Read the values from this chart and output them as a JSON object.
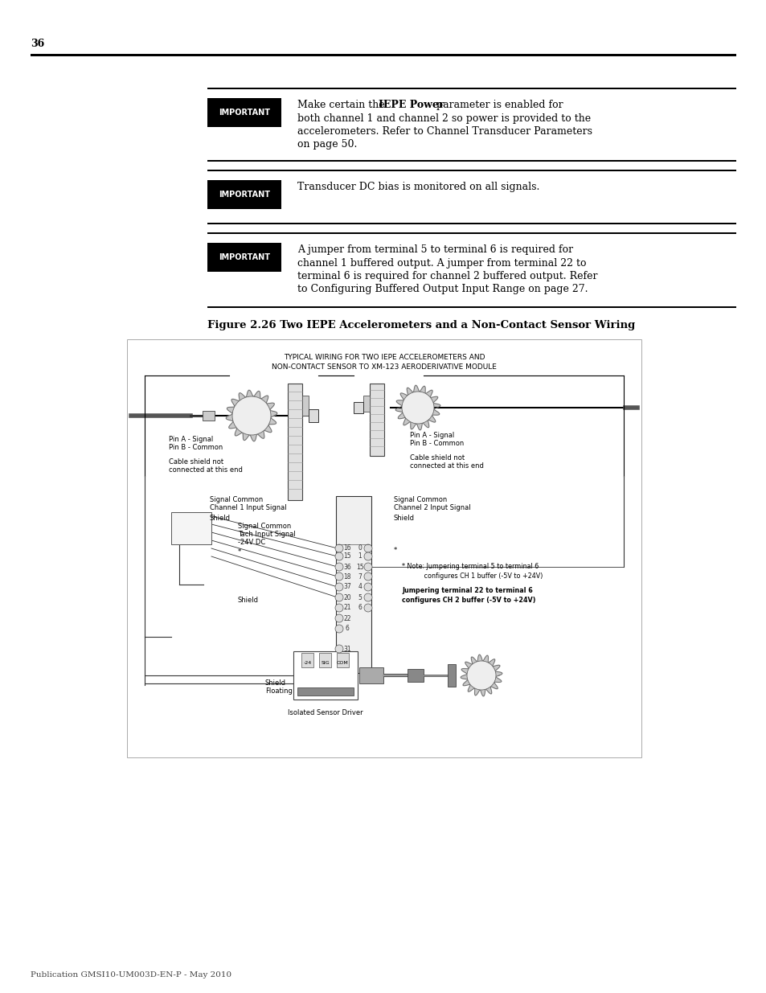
{
  "page_number": "36",
  "bg": "#ffffff",
  "black": "#000000",
  "gray": "#888888",
  "lgray": "#cccccc",
  "dgray": "#555555",
  "footer": "Publication GMSI10-UM003D-EN-P - May 2010",
  "imp1_text": "Make certain the |IEPE Power| parameter is enabled for\nboth channel 1 and channel 2 so power is provided to the\naccelerometers. Refer to Channel Transducer Parameters\non page 50.",
  "imp2_text": "Transducer DC bias is monitored on all signals.",
  "imp3_text": "A jumper from terminal 5 to terminal 6 is required for\nchannel 1 buffered output. A jumper from terminal 22 to\nterminal 6 is required for channel 2 buffered output. Refer\nto Configuring Buffered Output Input Range on page 27.",
  "fig_caption": "Figure 2.26 Two IEPE Accelerometers and a Non-Contact Sensor Wiring",
  "diag_t1": "TYPICAL WIRING FOR TWO IEPE ACCELEROMETERS AND",
  "diag_t2": "NON-CONTACT SENSOR TO XM-123 AERODERIVATIVE MODULE",
  "note1a": "* Note: Jumpering terminal 5 to terminal 6",
  "note1b": "configures CH 1 buffer (-5V to +24V)",
  "note2a": "Jumpering terminal 22 to terminal 6",
  "note2b": "configures CH 2 buffer (-5V to +24V)"
}
